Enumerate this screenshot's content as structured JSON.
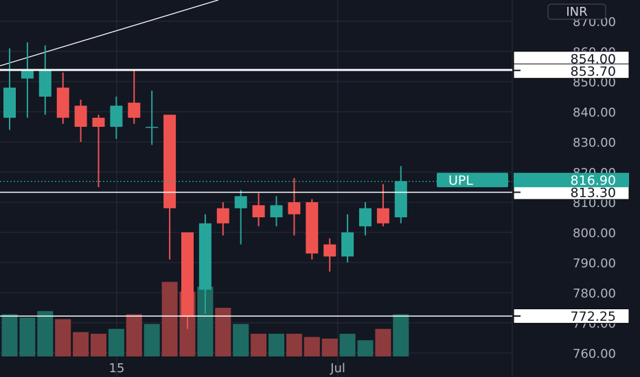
{
  "currency_badge": "INR",
  "colors": {
    "background": "#131722",
    "up": "#26a69a",
    "down": "#ef5350",
    "up_volume": "#1e6b63",
    "down_volume": "#8e3b3d",
    "grid": "#2a2e39",
    "text": "#b2b5be"
  },
  "chart_data": {
    "type": "candlestick",
    "y_axis": {
      "ticks": [
        760,
        770,
        780,
        790,
        800,
        810,
        820,
        830,
        840,
        850,
        860,
        870
      ],
      "range": [
        757,
        873
      ]
    },
    "x_axis": {
      "labels": [
        "15",
        "Jul"
      ]
    },
    "candles": [
      {
        "o": 838.0,
        "h": 861.0,
        "l": 834.0,
        "c": 848.0
      },
      {
        "o": 851.0,
        "h": 863.0,
        "l": 838.0,
        "c": 854.0
      },
      {
        "o": 845.0,
        "h": 862.0,
        "l": 839.0,
        "c": 854.0
      },
      {
        "o": 848.0,
        "h": 853.0,
        "l": 836.0,
        "c": 838.0
      },
      {
        "o": 842.0,
        "h": 844.0,
        "l": 830.0,
        "c": 835.0
      },
      {
        "o": 838.0,
        "h": 839.0,
        "l": 815.0,
        "c": 835.0
      },
      {
        "o": 835.0,
        "h": 845.0,
        "l": 831.0,
        "c": 842.0
      },
      {
        "o": 843.0,
        "h": 854.0,
        "l": 836.0,
        "c": 838.0
      },
      {
        "o": 835.0,
        "h": 847.0,
        "l": 829.0,
        "c": 835.0
      },
      {
        "o": 839.0,
        "h": 839.0,
        "l": 791.0,
        "c": 808.0
      },
      {
        "o": 800.0,
        "h": 800.0,
        "l": 768.0,
        "c": 772.0
      },
      {
        "o": 781.0,
        "h": 806.0,
        "l": 773.0,
        "c": 803.0
      },
      {
        "o": 808.0,
        "h": 810.0,
        "l": 799.0,
        "c": 803.0
      },
      {
        "o": 808.0,
        "h": 814.0,
        "l": 796.0,
        "c": 812.0
      },
      {
        "o": 809.0,
        "h": 813.0,
        "l": 802.0,
        "c": 805.0
      },
      {
        "o": 805.0,
        "h": 812.0,
        "l": 802.0,
        "c": 809.0
      },
      {
        "o": 810.0,
        "h": 818.0,
        "l": 799.0,
        "c": 806.0
      },
      {
        "o": 810.0,
        "h": 811.0,
        "l": 791.0,
        "c": 793.0
      },
      {
        "o": 796.0,
        "h": 798.0,
        "l": 787.0,
        "c": 792.0
      },
      {
        "o": 792.0,
        "h": 806.0,
        "l": 790.0,
        "c": 800.0
      },
      {
        "o": 802.0,
        "h": 810.0,
        "l": 799.0,
        "c": 808.0
      },
      {
        "o": 808.0,
        "h": 816.0,
        "l": 802.0,
        "c": 803.0
      },
      {
        "o": 805.0,
        "h": 822.0,
        "l": 803.0,
        "c": 817.0
      }
    ],
    "volume": {
      "max_ref": 100,
      "values": [
        26,
        24,
        28,
        23,
        15,
        14,
        17,
        26,
        20,
        46,
        40,
        43,
        30,
        20,
        14,
        14,
        14,
        12,
        11,
        14,
        10,
        17,
        26
      ]
    },
    "horizontal_levels": [
      {
        "price": 854.0,
        "label": "854.00",
        "style": "white-box"
      },
      {
        "price": 853.7,
        "label": "853.70",
        "style": "white-box"
      },
      {
        "price": 813.3,
        "label": "813.30",
        "style": "white-box"
      },
      {
        "price": 772.25,
        "label": "772.25",
        "style": "white-box"
      }
    ],
    "current_price": {
      "price": 816.9,
      "label": "816.90",
      "symbol": "UPL"
    }
  }
}
